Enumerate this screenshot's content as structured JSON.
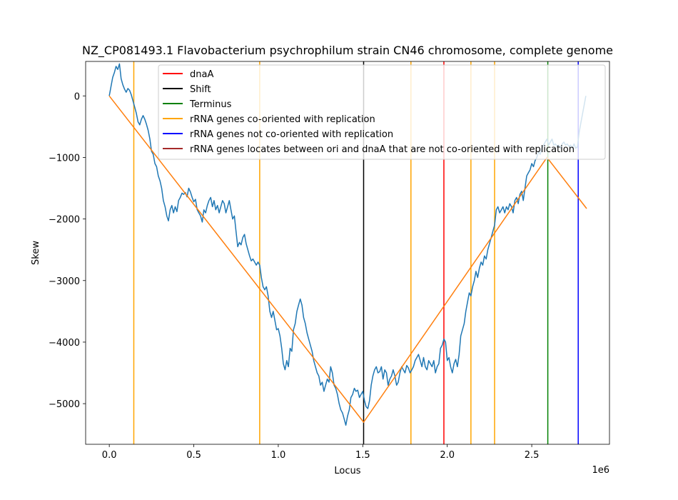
{
  "chart_data": {
    "type": "line",
    "title": "NZ_CP081493.1 Flavobacterium psychrophilum strain CN46 chromosome, complete genome",
    "xlabel": "Locus",
    "ylabel": "Skew",
    "x_offset_label": "1e6",
    "xlim": [
      -140000,
      2960000
    ],
    "ylim": [
      -5660000,
      0
    ],
    "ylim_skew": [
      -5660,
      560
    ],
    "xticks": [
      {
        "value": 0,
        "label": "0.0"
      },
      {
        "value": 500000,
        "label": "0.5"
      },
      {
        "value": 1000000,
        "label": "1.0"
      },
      {
        "value": 1500000,
        "label": "1.5"
      },
      {
        "value": 2000000,
        "label": "2.0"
      },
      {
        "value": 2500000,
        "label": "2.5"
      }
    ],
    "yticks": [
      {
        "value": 0,
        "label": "0"
      },
      {
        "value": -1000,
        "label": "−1000"
      },
      {
        "value": -2000,
        "label": "−2000"
      },
      {
        "value": -3000,
        "label": "−3000"
      },
      {
        "value": -4000,
        "label": "−4000"
      },
      {
        "value": -5000,
        "label": "−5000"
      }
    ],
    "skew_series": {
      "color": "#1f77b4",
      "points": [
        [
          0,
          0
        ],
        [
          10000,
          150
        ],
        [
          20000,
          300
        ],
        [
          30000,
          380
        ],
        [
          40000,
          480
        ],
        [
          50000,
          430
        ],
        [
          60000,
          520
        ],
        [
          70000,
          280
        ],
        [
          80000,
          180
        ],
        [
          90000,
          110
        ],
        [
          100000,
          60
        ],
        [
          110000,
          120
        ],
        [
          120000,
          90
        ],
        [
          130000,
          20
        ],
        [
          140000,
          -80
        ],
        [
          150000,
          -180
        ],
        [
          160000,
          -280
        ],
        [
          170000,
          -420
        ],
        [
          180000,
          -470
        ],
        [
          190000,
          -380
        ],
        [
          200000,
          -320
        ],
        [
          210000,
          -380
        ],
        [
          220000,
          -460
        ],
        [
          230000,
          -560
        ],
        [
          240000,
          -700
        ],
        [
          250000,
          -900
        ],
        [
          260000,
          -950
        ],
        [
          270000,
          -1100
        ],
        [
          280000,
          -1150
        ],
        [
          290000,
          -1300
        ],
        [
          300000,
          -1380
        ],
        [
          310000,
          -1500
        ],
        [
          320000,
          -1700
        ],
        [
          330000,
          -1800
        ],
        [
          340000,
          -1950
        ],
        [
          350000,
          -2030
        ],
        [
          360000,
          -1850
        ],
        [
          370000,
          -1780
        ],
        [
          380000,
          -1900
        ],
        [
          390000,
          -1800
        ],
        [
          400000,
          -1880
        ],
        [
          410000,
          -1700
        ],
        [
          420000,
          -1650
        ],
        [
          430000,
          -1580
        ],
        [
          440000,
          -1600
        ],
        [
          450000,
          -1570
        ],
        [
          460000,
          -1640
        ],
        [
          470000,
          -1500
        ],
        [
          480000,
          -1560
        ],
        [
          490000,
          -1650
        ],
        [
          500000,
          -1720
        ],
        [
          510000,
          -1680
        ],
        [
          520000,
          -1850
        ],
        [
          530000,
          -1900
        ],
        [
          540000,
          -1950
        ],
        [
          550000,
          -2050
        ],
        [
          560000,
          -1850
        ],
        [
          570000,
          -1900
        ],
        [
          580000,
          -1780
        ],
        [
          590000,
          -1700
        ],
        [
          600000,
          -1650
        ],
        [
          610000,
          -1800
        ],
        [
          620000,
          -1700
        ],
        [
          630000,
          -1850
        ],
        [
          640000,
          -1780
        ],
        [
          650000,
          -1900
        ],
        [
          660000,
          -1800
        ],
        [
          670000,
          -1700
        ],
        [
          680000,
          -1750
        ],
        [
          690000,
          -1900
        ],
        [
          700000,
          -1800
        ],
        [
          710000,
          -1700
        ],
        [
          720000,
          -1850
        ],
        [
          730000,
          -2000
        ],
        [
          740000,
          -1950
        ],
        [
          750000,
          -2200
        ],
        [
          760000,
          -2450
        ],
        [
          770000,
          -2380
        ],
        [
          780000,
          -2420
        ],
        [
          790000,
          -2300
        ],
        [
          800000,
          -2250
        ],
        [
          810000,
          -2400
        ],
        [
          820000,
          -2500
        ],
        [
          830000,
          -2600
        ],
        [
          840000,
          -2680
        ],
        [
          850000,
          -2650
        ],
        [
          860000,
          -2700
        ],
        [
          870000,
          -2750
        ],
        [
          880000,
          -2700
        ],
        [
          890000,
          -2750
        ],
        [
          900000,
          -2950
        ],
        [
          910000,
          -3100
        ],
        [
          920000,
          -3150
        ],
        [
          930000,
          -3100
        ],
        [
          940000,
          -3250
        ],
        [
          950000,
          -3500
        ],
        [
          960000,
          -3600
        ],
        [
          970000,
          -3500
        ],
        [
          980000,
          -3650
        ],
        [
          990000,
          -3800
        ],
        [
          1000000,
          -3780
        ],
        [
          1010000,
          -3900
        ],
        [
          1020000,
          -4100
        ],
        [
          1030000,
          -4350
        ],
        [
          1040000,
          -4450
        ],
        [
          1050000,
          -4300
        ],
        [
          1060000,
          -4400
        ],
        [
          1070000,
          -4100
        ],
        [
          1080000,
          -4150
        ],
        [
          1090000,
          -3800
        ],
        [
          1100000,
          -3700
        ],
        [
          1110000,
          -3500
        ],
        [
          1120000,
          -3400
        ],
        [
          1130000,
          -3300
        ],
        [
          1140000,
          -3400
        ],
        [
          1150000,
          -3600
        ],
        [
          1160000,
          -3700
        ],
        [
          1170000,
          -3850
        ],
        [
          1180000,
          -3950
        ],
        [
          1190000,
          -4050
        ],
        [
          1200000,
          -4150
        ],
        [
          1210000,
          -4300
        ],
        [
          1220000,
          -4400
        ],
        [
          1230000,
          -4500
        ],
        [
          1240000,
          -4550
        ],
        [
          1250000,
          -4700
        ],
        [
          1260000,
          -4650
        ],
        [
          1270000,
          -4800
        ],
        [
          1280000,
          -4700
        ],
        [
          1290000,
          -4600
        ],
        [
          1300000,
          -4650
        ],
        [
          1310000,
          -4400
        ],
        [
          1320000,
          -4500
        ],
        [
          1330000,
          -4700
        ],
        [
          1340000,
          -4750
        ],
        [
          1350000,
          -4850
        ],
        [
          1360000,
          -5000
        ],
        [
          1370000,
          -5100
        ],
        [
          1380000,
          -5150
        ],
        [
          1390000,
          -5250
        ],
        [
          1400000,
          -5350
        ],
        [
          1410000,
          -5200
        ],
        [
          1420000,
          -5100
        ],
        [
          1430000,
          -4900
        ],
        [
          1440000,
          -4850
        ],
        [
          1450000,
          -4750
        ],
        [
          1460000,
          -4800
        ],
        [
          1470000,
          -4780
        ],
        [
          1480000,
          -4900
        ],
        [
          1490000,
          -4850
        ],
        [
          1500000,
          -4800
        ],
        [
          1510000,
          -4950
        ],
        [
          1520000,
          -5050
        ],
        [
          1530000,
          -5080
        ],
        [
          1540000,
          -4950
        ],
        [
          1550000,
          -4700
        ],
        [
          1560000,
          -4550
        ],
        [
          1570000,
          -4450
        ],
        [
          1580000,
          -4400
        ],
        [
          1590000,
          -4500
        ],
        [
          1600000,
          -4480
        ],
        [
          1610000,
          -4400
        ],
        [
          1620000,
          -4600
        ],
        [
          1630000,
          -4450
        ],
        [
          1640000,
          -4500
        ],
        [
          1650000,
          -4700
        ],
        [
          1660000,
          -4600
        ],
        [
          1670000,
          -4550
        ],
        [
          1680000,
          -4450
        ],
        [
          1690000,
          -4550
        ],
        [
          1700000,
          -4700
        ],
        [
          1710000,
          -4650
        ],
        [
          1720000,
          -4500
        ],
        [
          1730000,
          -4400
        ],
        [
          1740000,
          -4450
        ],
        [
          1750000,
          -4500
        ],
        [
          1760000,
          -4380
        ],
        [
          1770000,
          -4420
        ],
        [
          1780000,
          -4500
        ],
        [
          1790000,
          -4450
        ],
        [
          1800000,
          -4400
        ],
        [
          1810000,
          -4300
        ],
        [
          1820000,
          -4250
        ],
        [
          1830000,
          -4200
        ],
        [
          1840000,
          -4300
        ],
        [
          1850000,
          -4400
        ],
        [
          1860000,
          -4250
        ],
        [
          1870000,
          -4400
        ],
        [
          1880000,
          -4450
        ],
        [
          1890000,
          -4300
        ],
        [
          1900000,
          -4350
        ],
        [
          1910000,
          -4400
        ],
        [
          1920000,
          -4300
        ],
        [
          1930000,
          -4500
        ],
        [
          1940000,
          -4400
        ],
        [
          1950000,
          -4350
        ],
        [
          1960000,
          -4100
        ],
        [
          1970000,
          -4050
        ],
        [
          1980000,
          -3950
        ],
        [
          1990000,
          -4000
        ],
        [
          2000000,
          -4300
        ],
        [
          2010000,
          -4250
        ],
        [
          2020000,
          -4400
        ],
        [
          2030000,
          -4500
        ],
        [
          2040000,
          -4350
        ],
        [
          2050000,
          -4280
        ],
        [
          2060000,
          -4400
        ],
        [
          2070000,
          -4200
        ],
        [
          2080000,
          -3900
        ],
        [
          2090000,
          -3800
        ],
        [
          2100000,
          -3700
        ],
        [
          2110000,
          -3500
        ],
        [
          2120000,
          -3350
        ],
        [
          2130000,
          -3200
        ],
        [
          2140000,
          -3250
        ],
        [
          2150000,
          -3100
        ],
        [
          2160000,
          -3000
        ],
        [
          2170000,
          -2850
        ],
        [
          2180000,
          -2950
        ],
        [
          2190000,
          -2800
        ],
        [
          2200000,
          -2700
        ],
        [
          2210000,
          -2750
        ],
        [
          2220000,
          -2600
        ],
        [
          2230000,
          -2650
        ],
        [
          2240000,
          -2500
        ],
        [
          2250000,
          -2400
        ],
        [
          2260000,
          -2300
        ],
        [
          2270000,
          -2200
        ],
        [
          2280000,
          -2100
        ],
        [
          2290000,
          -1850
        ],
        [
          2300000,
          -1800
        ],
        [
          2310000,
          -1900
        ],
        [
          2320000,
          -1850
        ],
        [
          2330000,
          -1800
        ],
        [
          2340000,
          -1900
        ],
        [
          2350000,
          -1800
        ],
        [
          2360000,
          -1850
        ],
        [
          2370000,
          -1750
        ],
        [
          2380000,
          -1800
        ],
        [
          2390000,
          -1900
        ],
        [
          2400000,
          -1700
        ],
        [
          2410000,
          -1650
        ],
        [
          2420000,
          -1750
        ],
        [
          2430000,
          -1600
        ],
        [
          2440000,
          -1550
        ],
        [
          2450000,
          -1700
        ],
        [
          2460000,
          -1500
        ],
        [
          2470000,
          -1300
        ],
        [
          2480000,
          -1250
        ],
        [
          2490000,
          -1200
        ],
        [
          2500000,
          -1100
        ],
        [
          2510000,
          -1150
        ],
        [
          2520000,
          -1050
        ],
        [
          2530000,
          -1000
        ],
        [
          2540000,
          -900
        ],
        [
          2550000,
          -950
        ],
        [
          2560000,
          -850
        ],
        [
          2570000,
          -800
        ],
        [
          2580000,
          -750
        ],
        [
          2590000,
          -700
        ],
        [
          2600000,
          -800
        ],
        [
          2610000,
          -750
        ],
        [
          2620000,
          -700
        ],
        [
          2630000,
          -800
        ],
        [
          2640000,
          -780
        ],
        [
          2650000,
          -820
        ],
        [
          2660000,
          -800
        ],
        [
          2670000,
          -850
        ],
        [
          2680000,
          -780
        ],
        [
          2690000,
          -750
        ],
        [
          2700000,
          -800
        ],
        [
          2710000,
          -780
        ],
        [
          2720000,
          -820
        ],
        [
          2730000,
          -800
        ],
        [
          2740000,
          -850
        ],
        [
          2750000,
          -780
        ],
        [
          2760000,
          -850
        ],
        [
          2770000,
          -830
        ],
        [
          2780000,
          -600
        ],
        [
          2790000,
          -450
        ],
        [
          2800000,
          -300
        ],
        [
          2810000,
          -150
        ],
        [
          2820000,
          0
        ]
      ]
    },
    "fit_series": {
      "color": "#ff7f0e",
      "points": [
        [
          0,
          0
        ],
        [
          1505000,
          -5300
        ],
        [
          2590000,
          -1000
        ],
        [
          2825000,
          -1830
        ]
      ]
    },
    "vertical_lines": [
      {
        "x": 145000,
        "color": "#ffa500",
        "group": "rRNA genes co-oriented with replication"
      },
      {
        "x": 890000,
        "color": "#ffa500",
        "group": "rRNA genes co-oriented with replication"
      },
      {
        "x": 1785000,
        "color": "#ffa500",
        "group": "rRNA genes co-oriented with replication"
      },
      {
        "x": 2140000,
        "color": "#ffa500",
        "group": "rRNA genes co-oriented with replication"
      },
      {
        "x": 2280000,
        "color": "#ffa500",
        "group": "rRNA genes co-oriented with replication"
      },
      {
        "x": 1505000,
        "color": "#000000",
        "group": "Shift"
      },
      {
        "x": 1980000,
        "color": "#ff0000",
        "group": "dnaA"
      },
      {
        "x": 2595000,
        "color": "#008000",
        "group": "Terminus"
      },
      {
        "x": 2775000,
        "color": "#0000ff",
        "group": "rRNA genes not co-oriented with replication"
      }
    ],
    "legend": {
      "placement": "upper-center",
      "entries": [
        {
          "label": "dnaA",
          "color": "#ff0000"
        },
        {
          "label": "Shift",
          "color": "#000000"
        },
        {
          "label": "Terminus",
          "color": "#008000"
        },
        {
          "label": "rRNA genes co-oriented with replication",
          "color": "#ffa500"
        },
        {
          "label": "rRNA genes not co-oriented with replication",
          "color": "#0000ff"
        },
        {
          "label": "rRNA genes locates between ori and dnaA that are not co-oriented with replication",
          "color": "#a52a2a"
        }
      ]
    },
    "grid": false
  }
}
